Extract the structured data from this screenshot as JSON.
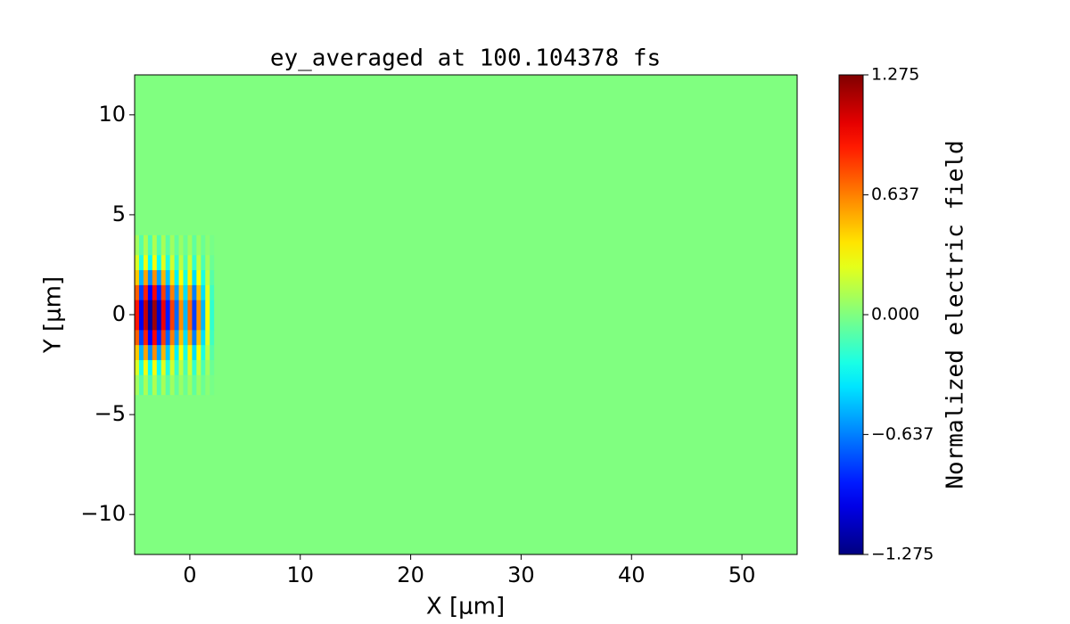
{
  "chart_data": {
    "type": "heatmap",
    "title": "ey_averaged at 100.104378 fs",
    "x_label": "X [μm]",
    "y_label": "Y [μm]",
    "colorbar_label": "Normalized electric field",
    "colormap": "jet",
    "xlim": [
      -5,
      55
    ],
    "ylim": [
      -12,
      12
    ],
    "xticks": [
      0,
      10,
      20,
      30,
      40,
      50
    ],
    "yticks": [
      {
        "value": -10,
        "label": "−10"
      },
      {
        "value": -5,
        "label": "−5"
      },
      0,
      5,
      10
    ],
    "clim": [
      -1.275,
      1.275
    ],
    "cticks": [
      {
        "value": -1.275,
        "label": "−1.275"
      },
      {
        "value": -0.637,
        "label": "−0.637"
      },
      {
        "value": 0,
        "label": "0.000"
      },
      {
        "value": 0.637,
        "label": "0.637"
      },
      {
        "value": 1.275,
        "label": "1.275"
      }
    ],
    "xbins": [
      -5,
      -4.6,
      -4.2,
      -3.8,
      -3.4,
      -3,
      -2.6,
      -2.2,
      -1.8,
      -1.4,
      -1,
      -0.6,
      -0.2,
      0.2,
      0.6,
      1,
      1.4,
      1.8,
      2.2,
      55
    ],
    "ybins": [
      -12,
      -4,
      -3,
      -2.25,
      -1.5,
      -0.75,
      0,
      0.75,
      1.5,
      2.25,
      3,
      4,
      12
    ],
    "z": [
      [
        0,
        0,
        0,
        0,
        0,
        0,
        0,
        0,
        0,
        0,
        0,
        0,
        0,
        0,
        0,
        0,
        0,
        0,
        0
      ],
      [
        0.09,
        -0.1,
        0.11,
        -0.12,
        0.12,
        -0.11,
        0.1,
        -0.09,
        0.08,
        -0.07,
        0.06,
        -0.05,
        0.07,
        -0.08,
        0.06,
        -0.05,
        0.03,
        -0.02,
        0
      ],
      [
        0.23,
        -0.25,
        0.28,
        -0.3,
        0.3,
        -0.28,
        0.25,
        -0.23,
        0.2,
        -0.18,
        0.15,
        -0.13,
        0.18,
        -0.2,
        0.15,
        -0.13,
        0.08,
        -0.05,
        0
      ],
      [
        0.45,
        -0.5,
        0.55,
        -0.6,
        0.6,
        -0.55,
        0.5,
        -0.45,
        0.4,
        -0.35,
        0.3,
        -0.25,
        0.35,
        -0.4,
        0.3,
        -0.25,
        0.15,
        -0.1,
        0
      ],
      [
        0.72,
        -0.8,
        0.88,
        -0.96,
        0.96,
        -0.88,
        0.8,
        -0.72,
        0.64,
        -0.56,
        0.48,
        -0.4,
        0.56,
        -0.64,
        0.48,
        -0.4,
        0.24,
        -0.16,
        0
      ],
      [
        0.9,
        -1.0,
        1.1,
        -1.2,
        1.2,
        -1.1,
        1.0,
        -0.9,
        0.8,
        -0.7,
        0.6,
        -0.5,
        0.7,
        -0.8,
        0.6,
        -0.5,
        0.3,
        -0.2,
        0
      ],
      [
        0.9,
        -1.0,
        1.1,
        -1.2,
        1.2,
        -1.1,
        1.0,
        -0.9,
        0.8,
        -0.7,
        0.6,
        -0.5,
        0.7,
        -0.8,
        0.6,
        -0.5,
        0.3,
        -0.2,
        0
      ],
      [
        0.72,
        -0.8,
        0.88,
        -0.96,
        0.96,
        -0.88,
        0.8,
        -0.72,
        0.64,
        -0.56,
        0.48,
        -0.4,
        0.56,
        -0.64,
        0.48,
        -0.4,
        0.24,
        -0.16,
        0
      ],
      [
        0.45,
        -0.5,
        0.55,
        -0.6,
        0.6,
        -0.55,
        0.5,
        -0.45,
        0.4,
        -0.35,
        0.3,
        -0.25,
        0.35,
        -0.4,
        0.3,
        -0.25,
        0.15,
        -0.1,
        0
      ],
      [
        0.23,
        -0.25,
        0.28,
        -0.3,
        0.3,
        -0.28,
        0.25,
        -0.23,
        0.2,
        -0.18,
        0.15,
        -0.13,
        0.18,
        -0.2,
        0.15,
        -0.13,
        0.08,
        -0.05,
        0
      ],
      [
        0.09,
        -0.1,
        0.11,
        -0.12,
        0.12,
        -0.11,
        0.1,
        -0.09,
        0.08,
        -0.07,
        0.06,
        -0.05,
        0.07,
        -0.08,
        0.06,
        -0.05,
        0.03,
        -0.02,
        0
      ],
      [
        0,
        0,
        0,
        0,
        0,
        0,
        0,
        0,
        0,
        0,
        0,
        0,
        0,
        0,
        0,
        0,
        0,
        0,
        0
      ]
    ]
  }
}
